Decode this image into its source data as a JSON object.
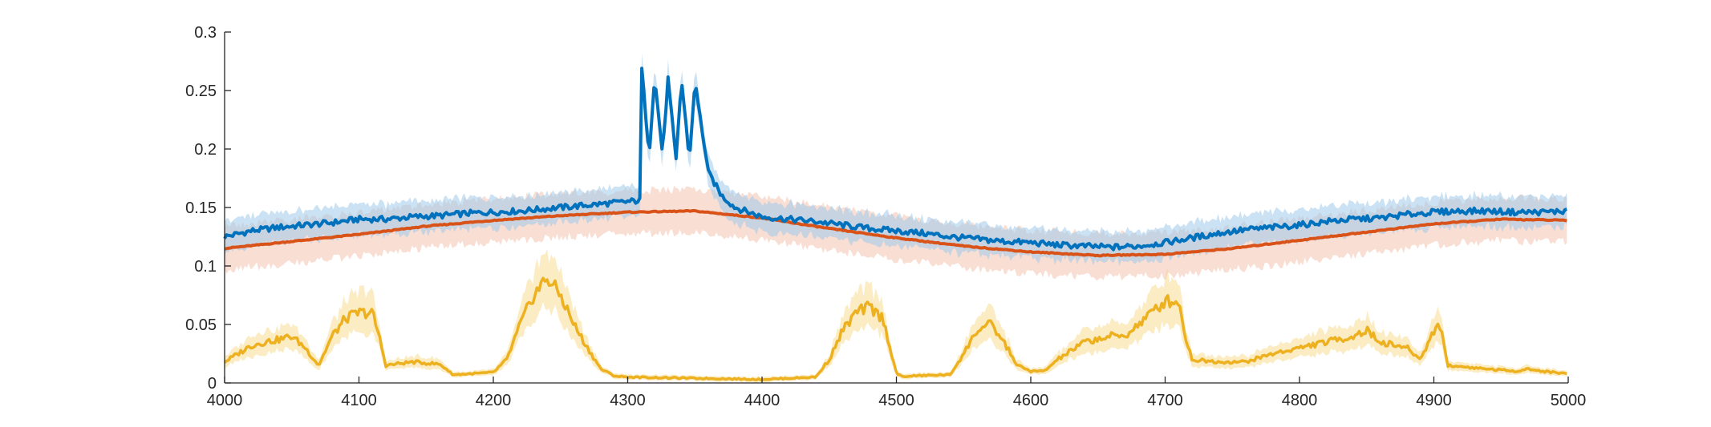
{
  "chart_data": {
    "type": "line",
    "title": "",
    "xlabel": "",
    "ylabel": "",
    "xlim": [
      4000,
      5000
    ],
    "ylim": [
      0,
      0.3
    ],
    "x_ticks": [
      4000,
      4100,
      4200,
      4300,
      4400,
      4500,
      4600,
      4700,
      4800,
      4900,
      5000
    ],
    "y_ticks": [
      0,
      0.05,
      0.1,
      0.15,
      0.2,
      0.25,
      0.3
    ],
    "x_tick_labels": [
      "4000",
      "4100",
      "4200",
      "4300",
      "4400",
      "4500",
      "4600",
      "4700",
      "4800",
      "4900",
      "5000"
    ],
    "y_tick_labels": [
      "0",
      "0.05",
      "0.1",
      "0.15",
      "0.2",
      "0.25",
      "0.3"
    ],
    "grid": false,
    "legend": "none",
    "colors": {
      "blue": "#0072BD",
      "blue_band": "#9ECAE9",
      "red": "#D95319",
      "red_band": "#F4C2B0",
      "yellow": "#EDB120",
      "yellow_band": "#F7DC94",
      "axis": "#262626"
    },
    "series": [
      {
        "color": "blue",
        "x": [
          4000,
          4020,
          4040,
          4060,
          4080,
          4100,
          4120,
          4140,
          4160,
          4180,
          4200,
          4220,
          4240,
          4260,
          4280,
          4300,
          4309,
          4310,
          4316,
          4320,
          4326,
          4330,
          4336,
          4340,
          4346,
          4350,
          4360,
          4370,
          4380,
          4400,
          4420,
          4440,
          4460,
          4480,
          4500,
          4520,
          4540,
          4560,
          4580,
          4600,
          4620,
          4640,
          4660,
          4680,
          4700,
          4720,
          4740,
          4760,
          4780,
          4800,
          4820,
          4840,
          4860,
          4880,
          4900,
          4920,
          4940,
          4960,
          4980,
          5000
        ],
        "y": [
          0.125,
          0.13,
          0.133,
          0.135,
          0.137,
          0.14,
          0.14,
          0.142,
          0.143,
          0.145,
          0.146,
          0.147,
          0.149,
          0.151,
          0.153,
          0.155,
          0.156,
          0.275,
          0.195,
          0.262,
          0.195,
          0.26,
          0.19,
          0.26,
          0.19,
          0.258,
          0.18,
          0.16,
          0.15,
          0.142,
          0.14,
          0.138,
          0.135,
          0.132,
          0.13,
          0.128,
          0.125,
          0.123,
          0.121,
          0.12,
          0.118,
          0.117,
          0.116,
          0.117,
          0.12,
          0.124,
          0.128,
          0.131,
          0.133,
          0.135,
          0.138,
          0.14,
          0.141,
          0.144,
          0.146,
          0.147,
          0.147,
          0.146,
          0.146,
          0.147
        ],
        "band_halfwidth": 0.014,
        "noise": 0.005
      },
      {
        "color": "red",
        "x": [
          4000,
          4050,
          4100,
          4150,
          4200,
          4250,
          4300,
          4350,
          4400,
          4450,
          4500,
          4550,
          4600,
          4650,
          4700,
          4750,
          4800,
          4850,
          4900,
          4950,
          5000
        ],
        "y": [
          0.115,
          0.121,
          0.127,
          0.134,
          0.139,
          0.143,
          0.146,
          0.147,
          0.141,
          0.132,
          0.124,
          0.117,
          0.112,
          0.109,
          0.11,
          0.115,
          0.122,
          0.129,
          0.136,
          0.14,
          0.139
        ],
        "band_halfwidth": 0.02,
        "noise": 0.0008
      },
      {
        "color": "yellow",
        "x": [
          4000,
          4010,
          4020,
          4030,
          4040,
          4050,
          4060,
          4070,
          4080,
          4090,
          4100,
          4110,
          4115,
          4120,
          4140,
          4160,
          4165,
          4170,
          4200,
          4210,
          4220,
          4230,
          4240,
          4250,
          4260,
          4270,
          4280,
          4290,
          4300,
          4350,
          4400,
          4440,
          4450,
          4460,
          4470,
          4480,
          4490,
          4500,
          4505,
          4510,
          4540,
          4550,
          4560,
          4570,
          4580,
          4590,
          4600,
          4610,
          4620,
          4640,
          4660,
          4670,
          4680,
          4690,
          4700,
          4710,
          4715,
          4720,
          4740,
          4760,
          4780,
          4800,
          4820,
          4840,
          4850,
          4860,
          4880,
          4890,
          4900,
          4905,
          4910,
          4940,
          4960,
          4970,
          4980,
          5000
        ],
        "y": [
          0.018,
          0.025,
          0.032,
          0.035,
          0.037,
          0.04,
          0.03,
          0.015,
          0.04,
          0.055,
          0.06,
          0.06,
          0.04,
          0.015,
          0.018,
          0.016,
          0.012,
          0.007,
          0.009,
          0.02,
          0.05,
          0.075,
          0.09,
          0.075,
          0.05,
          0.03,
          0.012,
          0.006,
          0.005,
          0.004,
          0.003,
          0.005,
          0.02,
          0.045,
          0.06,
          0.065,
          0.055,
          0.008,
          0.005,
          0.006,
          0.007,
          0.025,
          0.045,
          0.05,
          0.035,
          0.015,
          0.01,
          0.01,
          0.02,
          0.035,
          0.04,
          0.04,
          0.05,
          0.06,
          0.07,
          0.07,
          0.04,
          0.02,
          0.018,
          0.018,
          0.025,
          0.03,
          0.035,
          0.04,
          0.045,
          0.035,
          0.03,
          0.02,
          0.045,
          0.05,
          0.015,
          0.012,
          0.01,
          0.012,
          0.01,
          0.008
        ],
        "band_halfwidth": 0.012,
        "noise": 0.008
      }
    ]
  }
}
